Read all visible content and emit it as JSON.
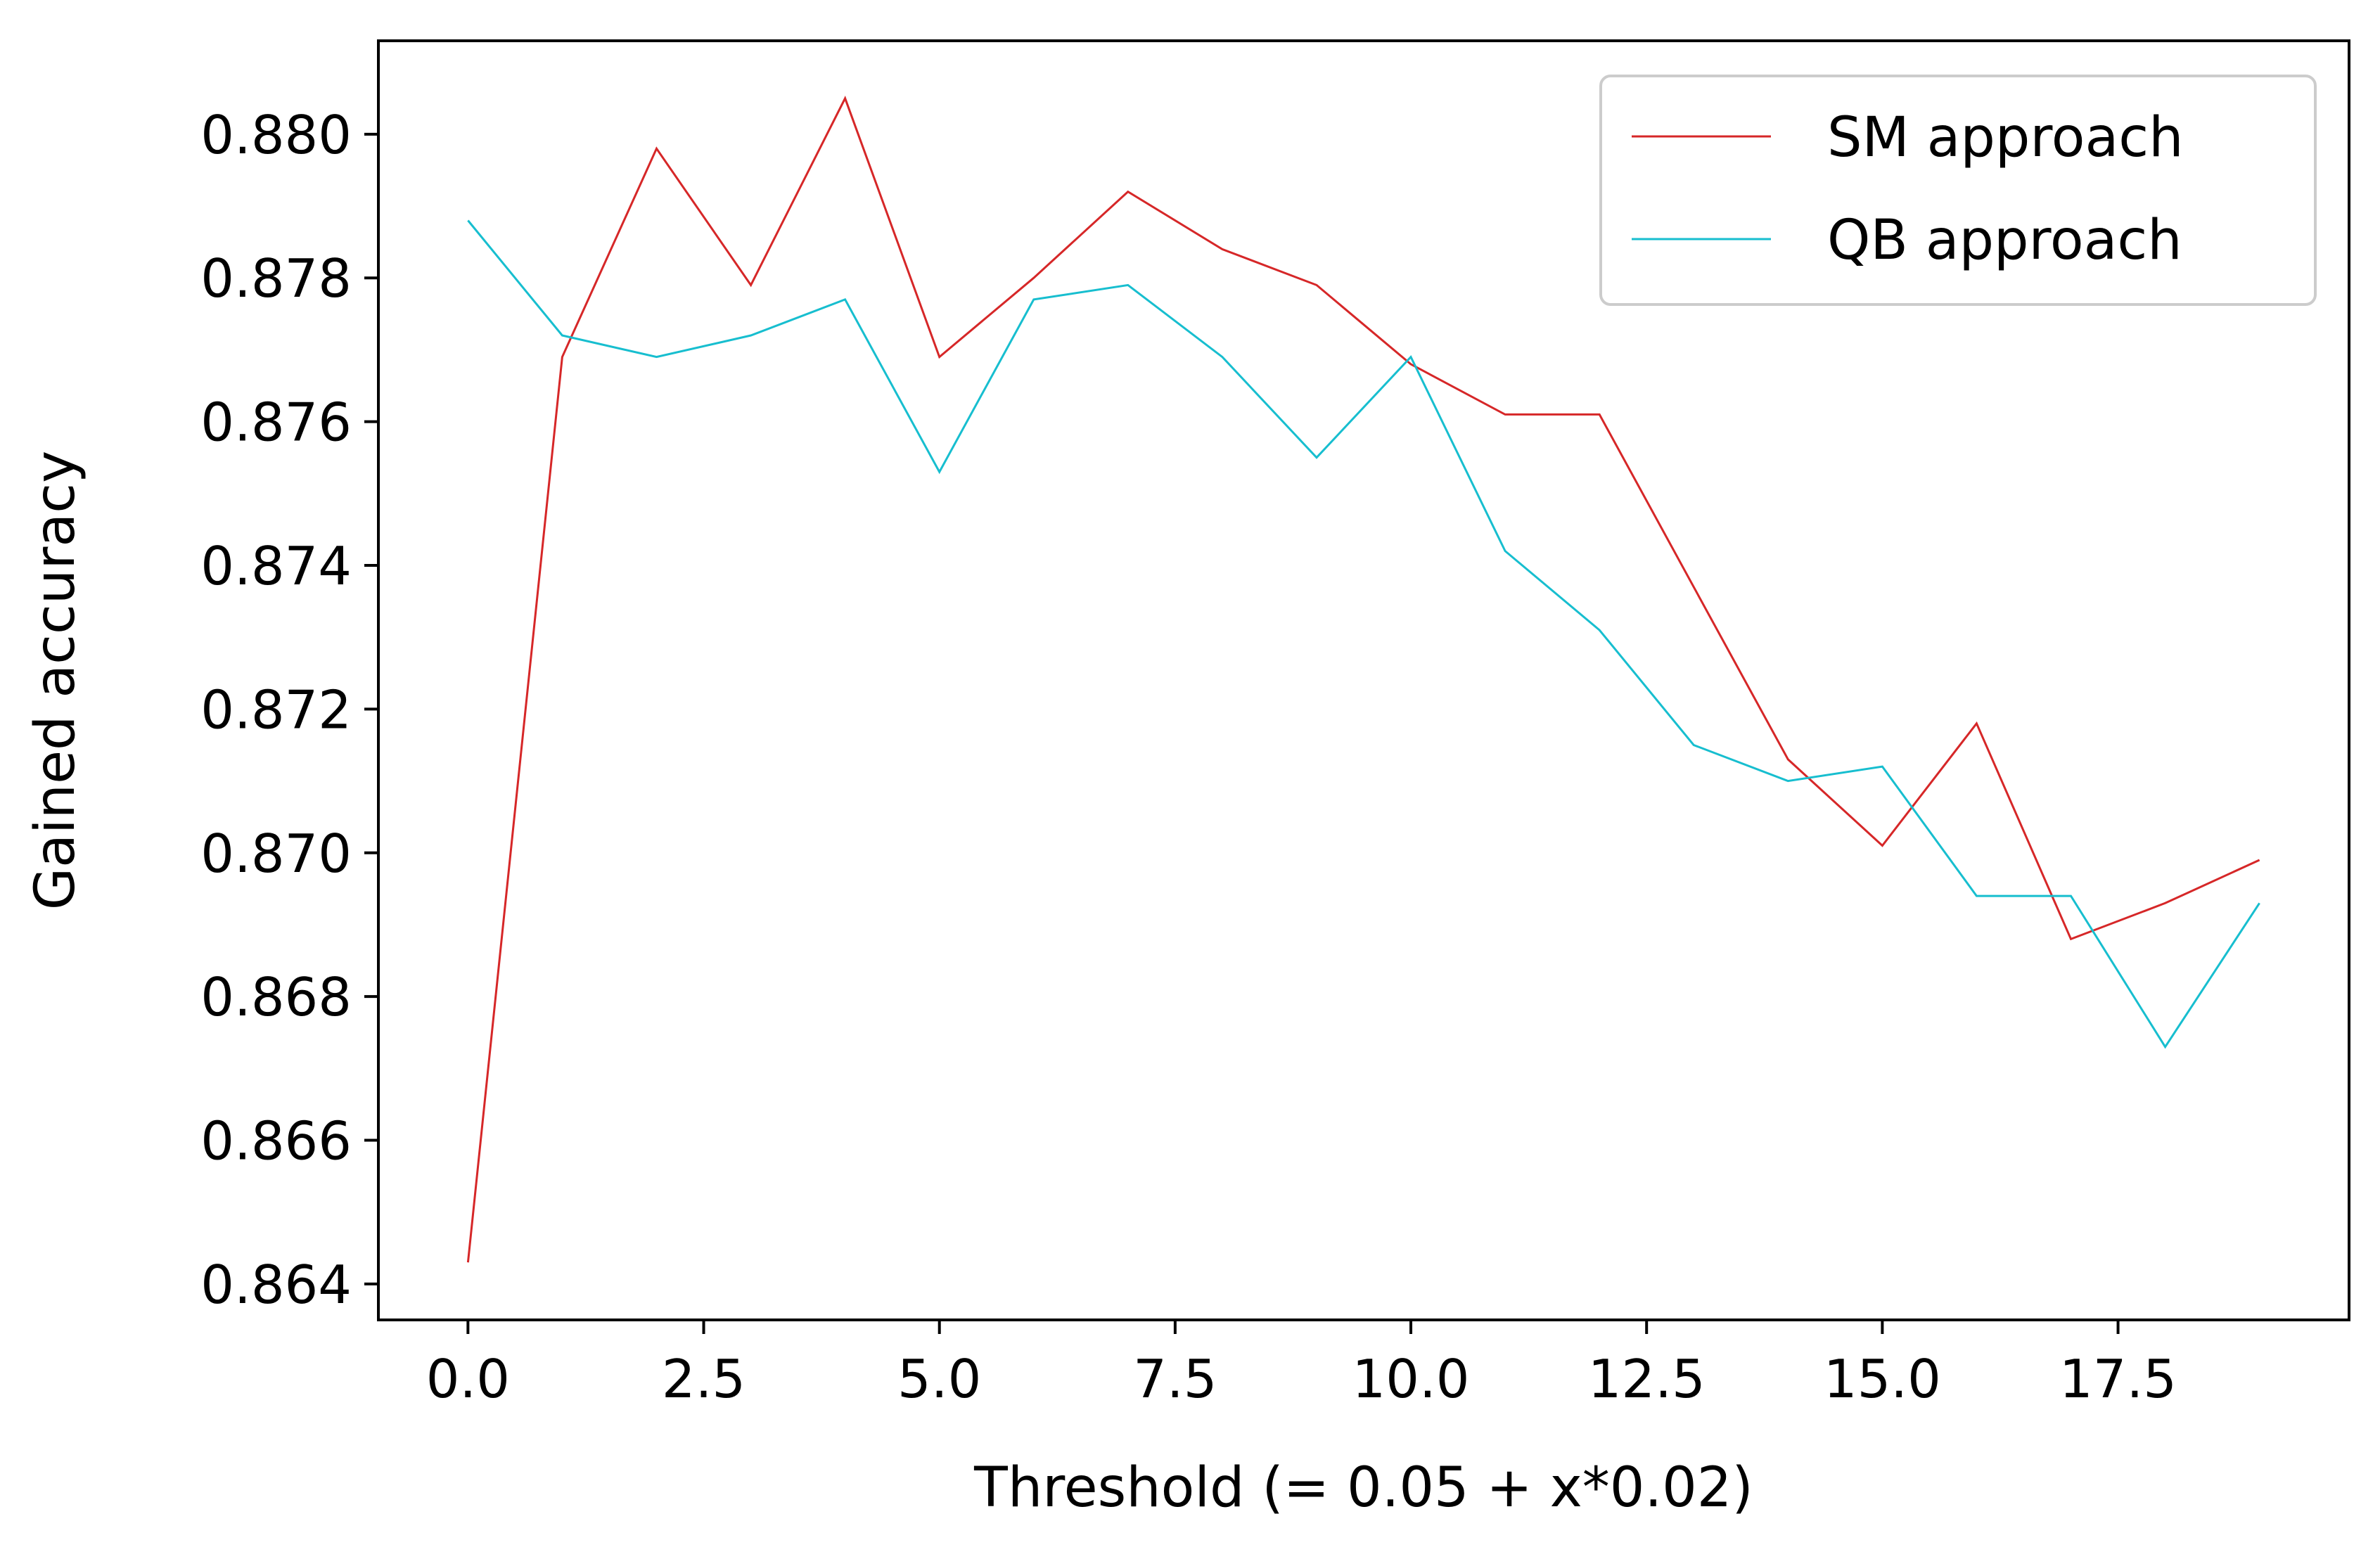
{
  "chart_data": {
    "type": "line",
    "title": "",
    "xlabel": "Threshold (= 0.05 + x*0.02)",
    "ylabel": "Gained accuracy",
    "x": [
      0,
      1,
      2,
      3,
      4,
      5,
      6,
      7,
      8,
      9,
      10,
      11,
      12,
      13,
      14,
      15,
      16,
      17,
      18,
      19
    ],
    "xlim": [
      -0.95,
      19.95
    ],
    "ylim": [
      0.8635,
      0.8813
    ],
    "xticks": [
      0.0,
      2.5,
      5.0,
      7.5,
      10.0,
      12.5,
      15.0,
      17.5
    ],
    "xtick_labels": [
      "0.0",
      "2.5",
      "5.0",
      "7.5",
      "10.0",
      "12.5",
      "15.0",
      "17.5"
    ],
    "yticks": [
      0.864,
      0.866,
      0.868,
      0.87,
      0.872,
      0.874,
      0.876,
      0.878,
      0.88
    ],
    "ytick_labels": [
      "0.864",
      "0.866",
      "0.868",
      "0.870",
      "0.872",
      "0.874",
      "0.876",
      "0.878",
      "0.880"
    ],
    "grid": false,
    "legend_position": "top-right",
    "series": [
      {
        "name": "SM approach",
        "color": "#d62728",
        "values": [
          0.8643,
          0.8769,
          0.8798,
          0.8779,
          0.8805,
          0.8769,
          0.878,
          0.8792,
          0.8784,
          0.8779,
          0.8768,
          0.8761,
          0.8761,
          0.8737,
          0.8713,
          0.8701,
          0.8718,
          0.8688,
          0.8693,
          0.8699
        ]
      },
      {
        "name": "QB approach",
        "color": "#17becf",
        "values": [
          0.8788,
          0.8772,
          0.8769,
          0.8772,
          0.8777,
          0.8753,
          0.8777,
          0.8779,
          0.8769,
          0.8755,
          0.8769,
          0.8742,
          0.8731,
          0.8715,
          0.871,
          0.8712,
          0.8694,
          0.8694,
          0.8673,
          0.8693
        ]
      }
    ]
  }
}
